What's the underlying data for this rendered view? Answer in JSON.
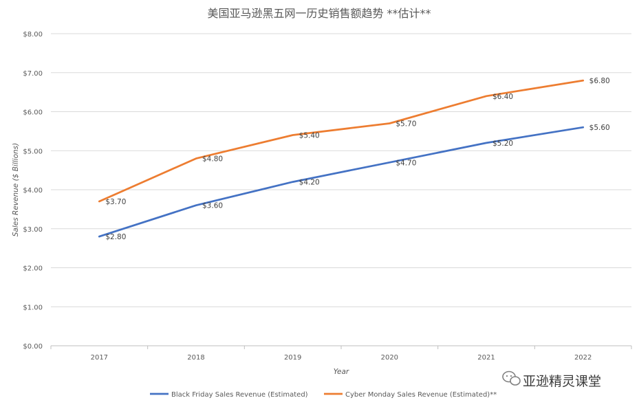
{
  "chart_data": {
    "type": "line",
    "title": "美国亚马逊黑五网一历史销售额趋势 **估计**",
    "xlabel": "Year",
    "ylabel": "Sales Revenue ($ Billions)",
    "categories": [
      "2017",
      "2018",
      "2019",
      "2020",
      "2021",
      "2022"
    ],
    "ylim": [
      0,
      8
    ],
    "yticks": [
      "$0.00",
      "$1.00",
      "$2.00",
      "$3.00",
      "$4.00",
      "$5.00",
      "$6.00",
      "$7.00",
      "$8.00"
    ],
    "grid": true,
    "legend_position": "bottom",
    "series": [
      {
        "name": "Black Friday Sales Revenue (Estimated)",
        "color": "#4472C4",
        "values": [
          2.8,
          3.6,
          4.2,
          4.7,
          5.2,
          5.6
        ],
        "labels": [
          "$2.80",
          "$3.60",
          "$4.20",
          "$4.70",
          "$5.20",
          "$5.60"
        ]
      },
      {
        "name": "Cyber Monday Sales Revenue (Estimated)**",
        "color": "#ED7D31",
        "values": [
          3.7,
          4.8,
          5.4,
          5.7,
          6.4,
          6.8
        ],
        "labels": [
          "$3.70",
          "$4.80",
          "$5.40",
          "$5.70",
          "$6.40",
          "$6.80"
        ]
      }
    ]
  },
  "watermark": {
    "text": "亚逊精灵课堂",
    "icon": "wechat-icon"
  }
}
